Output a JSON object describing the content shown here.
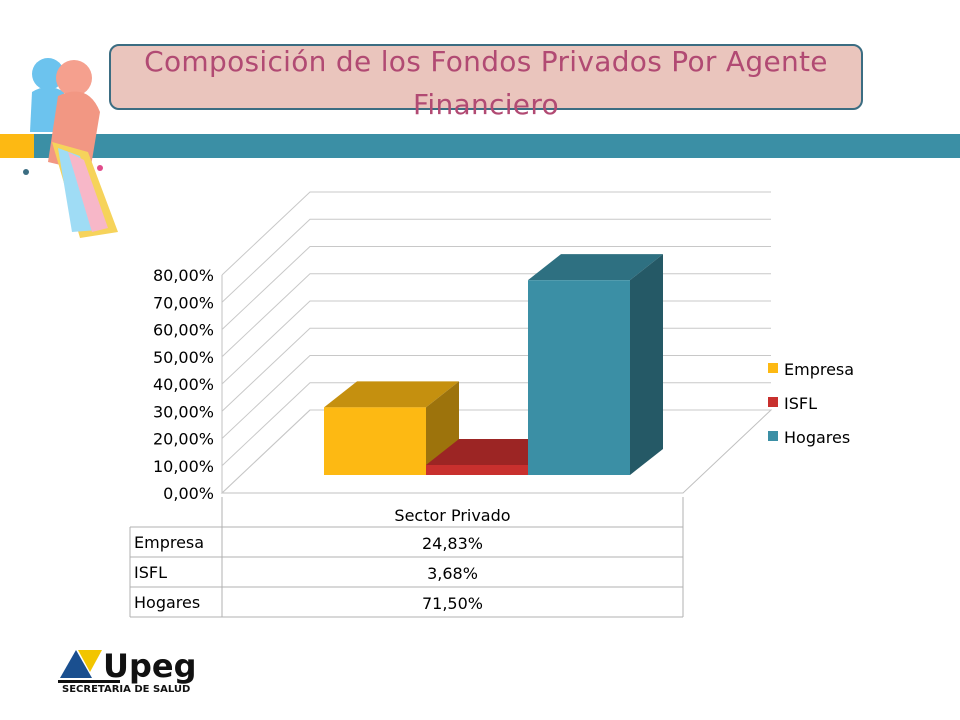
{
  "slide": {
    "title": "Composición de los Fondos Privados Por Agente Financiero"
  },
  "logo": {
    "brand": "Upeg",
    "subtitle": "SECRETARIA DE SALUD"
  },
  "colors": {
    "band": "#3b8fa5",
    "band_accent": "#fdb913",
    "title_bg": "#eac5bd",
    "title_text": "#b14a73"
  },
  "chart_data": {
    "type": "bar",
    "style": "3d-clustered-column",
    "categories": [
      "Sector Privado"
    ],
    "series": [
      {
        "name": "Empresa",
        "values": [
          24.83
        ],
        "color": "#fdb913",
        "label": "24,83%"
      },
      {
        "name": "ISFL",
        "values": [
          3.68
        ],
        "color": "#c8302e",
        "label": "3,68%"
      },
      {
        "name": "Hogares",
        "values": [
          71.5
        ],
        "color": "#3b8fa5",
        "label": "71,50%"
      }
    ],
    "ylim": [
      0,
      80
    ],
    "yticks": [
      "0,00%",
      "10,00%",
      "20,00%",
      "30,00%",
      "40,00%",
      "50,00%",
      "60,00%",
      "70,00%",
      "80,00%"
    ],
    "grid": true,
    "legend": "right",
    "data_table": true
  }
}
